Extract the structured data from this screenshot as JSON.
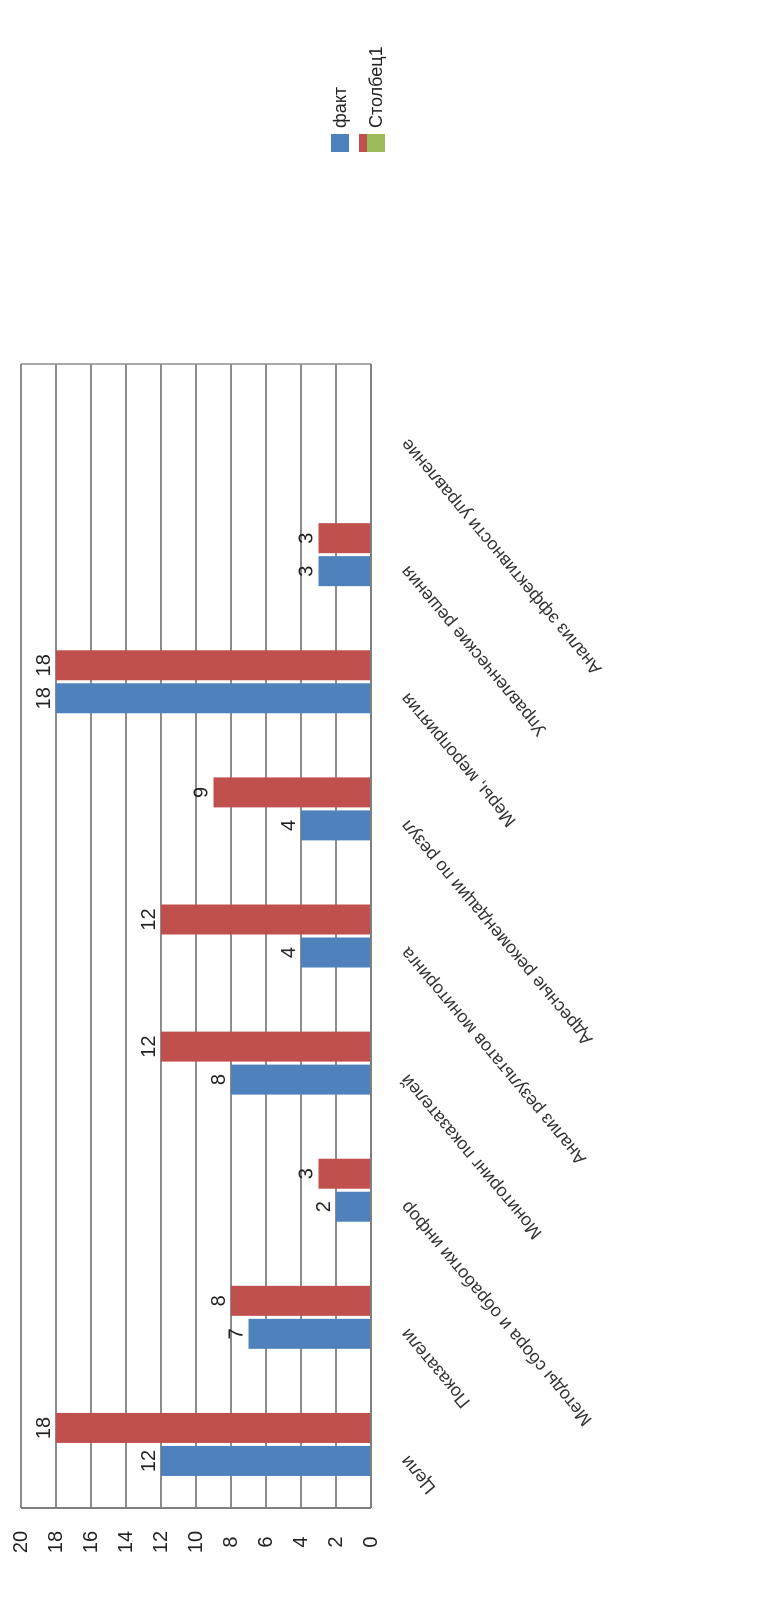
{
  "chart_data": {
    "type": "bar",
    "orientation": "rotated-90",
    "categories": [
      "Цели",
      "Показатели",
      "Методы сбора и обработки инфор",
      "Мониторинг показателей",
      "Анализ результатов мониторинга",
      "Адресные рекомендации по резул",
      "Меры, мероприятия",
      "Управленческие решения",
      "Анализ эффективности управление"
    ],
    "series": [
      {
        "name": "факт",
        "color": "#4f81bd",
        "values": [
          12,
          7,
          2,
          8,
          4,
          4,
          18,
          3,
          null
        ]
      },
      {
        "name": "",
        "color": "#c0504d",
        "values": [
          18,
          8,
          3,
          12,
          12,
          9,
          18,
          3,
          null
        ]
      },
      {
        "name": "Столбец1",
        "color": "#9bbb59",
        "values": [
          null,
          null,
          null,
          null,
          null,
          null,
          null,
          null,
          null
        ]
      }
    ],
    "ylim": [
      0,
      20
    ],
    "ticks": [
      "0",
      "2",
      "4",
      "6",
      "8",
      "10",
      "12",
      "14",
      "16",
      "18",
      "20"
    ],
    "grid": true,
    "legend": "top-right",
    "title": "",
    "xlabel": "",
    "ylabel": ""
  }
}
